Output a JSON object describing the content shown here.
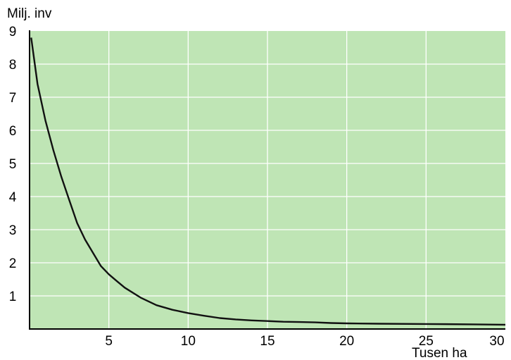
{
  "chart_data": {
    "type": "line",
    "title": "",
    "ylabel": "Milj. inv",
    "xlabel": "Tusen ha",
    "xlim": [
      0,
      30
    ],
    "ylim": [
      0,
      9
    ],
    "x_ticks": [
      5,
      10,
      15,
      20,
      25,
      30
    ],
    "y_ticks": [
      1,
      2,
      3,
      4,
      5,
      6,
      7,
      8,
      9
    ],
    "x_gridlines": [
      5,
      10,
      15,
      20,
      25
    ],
    "y_gridlines": [
      1,
      2,
      3,
      4,
      5,
      6,
      7,
      8
    ],
    "grid": true,
    "colors": {
      "plot_background": "#bfe5b5",
      "grid": "#ffffff",
      "line": "#111111",
      "axis": "#000000"
    },
    "series": [
      {
        "x": [
          0.1,
          0.5,
          1,
          1.5,
          2,
          2.5,
          3,
          3.5,
          4,
          4.5,
          5,
          5.5,
          6,
          7,
          8,
          9,
          10,
          11,
          12,
          13,
          14,
          15,
          16,
          17,
          18,
          19,
          20,
          22,
          25,
          28,
          30
        ],
        "values": [
          8.8,
          7.4,
          6.3,
          5.4,
          4.6,
          3.9,
          3.2,
          2.7,
          2.3,
          1.9,
          1.65,
          1.45,
          1.25,
          0.95,
          0.72,
          0.58,
          0.48,
          0.4,
          0.33,
          0.29,
          0.26,
          0.24,
          0.22,
          0.21,
          0.2,
          0.18,
          0.17,
          0.16,
          0.15,
          0.14,
          0.13
        ]
      }
    ]
  }
}
